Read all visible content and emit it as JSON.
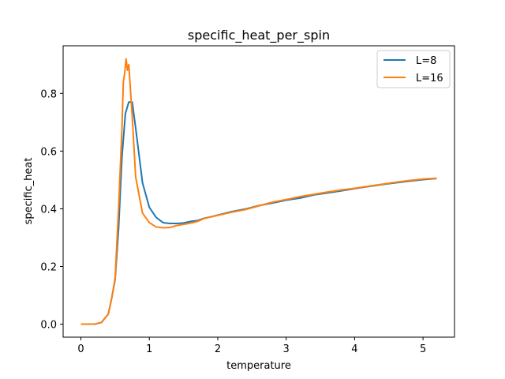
{
  "chart_data": {
    "type": "line",
    "title": "specific_heat_per_spin",
    "xlabel": "temperature",
    "ylabel": "specific_heat",
    "xlim": [
      -0.26,
      5.46
    ],
    "ylim": [
      -0.045,
      0.965
    ],
    "xticks": [
      0,
      1,
      2,
      3,
      4,
      5
    ],
    "yticks": [
      0.0,
      0.2,
      0.4,
      0.6,
      0.8
    ],
    "xtick_labels": [
      "0",
      "1",
      "2",
      "3",
      "4",
      "5"
    ],
    "ytick_labels": [
      "0.0",
      "0.2",
      "0.4",
      "0.6",
      "0.8"
    ],
    "grid": false,
    "legend": "top-right",
    "series": [
      {
        "name": "L=8",
        "color": "#1f77b4",
        "x": [
          0,
          0.1,
          0.2,
          0.3,
          0.4,
          0.45,
          0.5,
          0.55,
          0.6,
          0.65,
          0.7,
          0.75,
          0.8,
          0.9,
          1.0,
          1.1,
          1.2,
          1.3,
          1.4,
          1.5,
          1.6,
          1.7,
          1.8,
          1.9,
          2.0,
          2.2,
          2.4,
          2.6,
          2.8,
          3.0,
          3.2,
          3.4,
          3.6,
          3.8,
          4.0,
          4.2,
          4.4,
          4.6,
          4.8,
          5.0,
          5.2
        ],
        "y": [
          0,
          0,
          0,
          0.006,
          0.035,
          0.09,
          0.155,
          0.33,
          0.58,
          0.73,
          0.77,
          0.77,
          0.68,
          0.49,
          0.405,
          0.37,
          0.352,
          0.349,
          0.349,
          0.351,
          0.356,
          0.359,
          0.367,
          0.372,
          0.378,
          0.39,
          0.399,
          0.411,
          0.42,
          0.43,
          0.437,
          0.448,
          0.455,
          0.462,
          0.47,
          0.477,
          0.484,
          0.49,
          0.496,
          0.501,
          0.505
        ]
      },
      {
        "name": "L=16",
        "color": "#ff7f0e",
        "x": [
          0,
          0.1,
          0.2,
          0.3,
          0.4,
          0.45,
          0.5,
          0.55,
          0.6,
          0.62,
          0.64,
          0.66,
          0.68,
          0.7,
          0.75,
          0.8,
          0.9,
          1.0,
          1.1,
          1.2,
          1.3,
          1.4,
          1.5,
          1.6,
          1.7,
          1.8,
          1.9,
          2.0,
          2.2,
          2.4,
          2.6,
          2.8,
          3.0,
          3.2,
          3.4,
          3.6,
          3.8,
          4.0,
          4.2,
          4.4,
          4.6,
          4.8,
          5.0,
          5.2
        ],
        "y": [
          0,
          0,
          0,
          0.006,
          0.035,
          0.09,
          0.16,
          0.4,
          0.68,
          0.84,
          0.87,
          0.92,
          0.88,
          0.9,
          0.72,
          0.51,
          0.385,
          0.352,
          0.337,
          0.334,
          0.335,
          0.342,
          0.346,
          0.35,
          0.356,
          0.366,
          0.372,
          0.377,
          0.388,
          0.397,
          0.41,
          0.423,
          0.432,
          0.442,
          0.45,
          0.458,
          0.465,
          0.471,
          0.478,
          0.485,
          0.492,
          0.498,
          0.503,
          0.506
        ]
      }
    ]
  }
}
